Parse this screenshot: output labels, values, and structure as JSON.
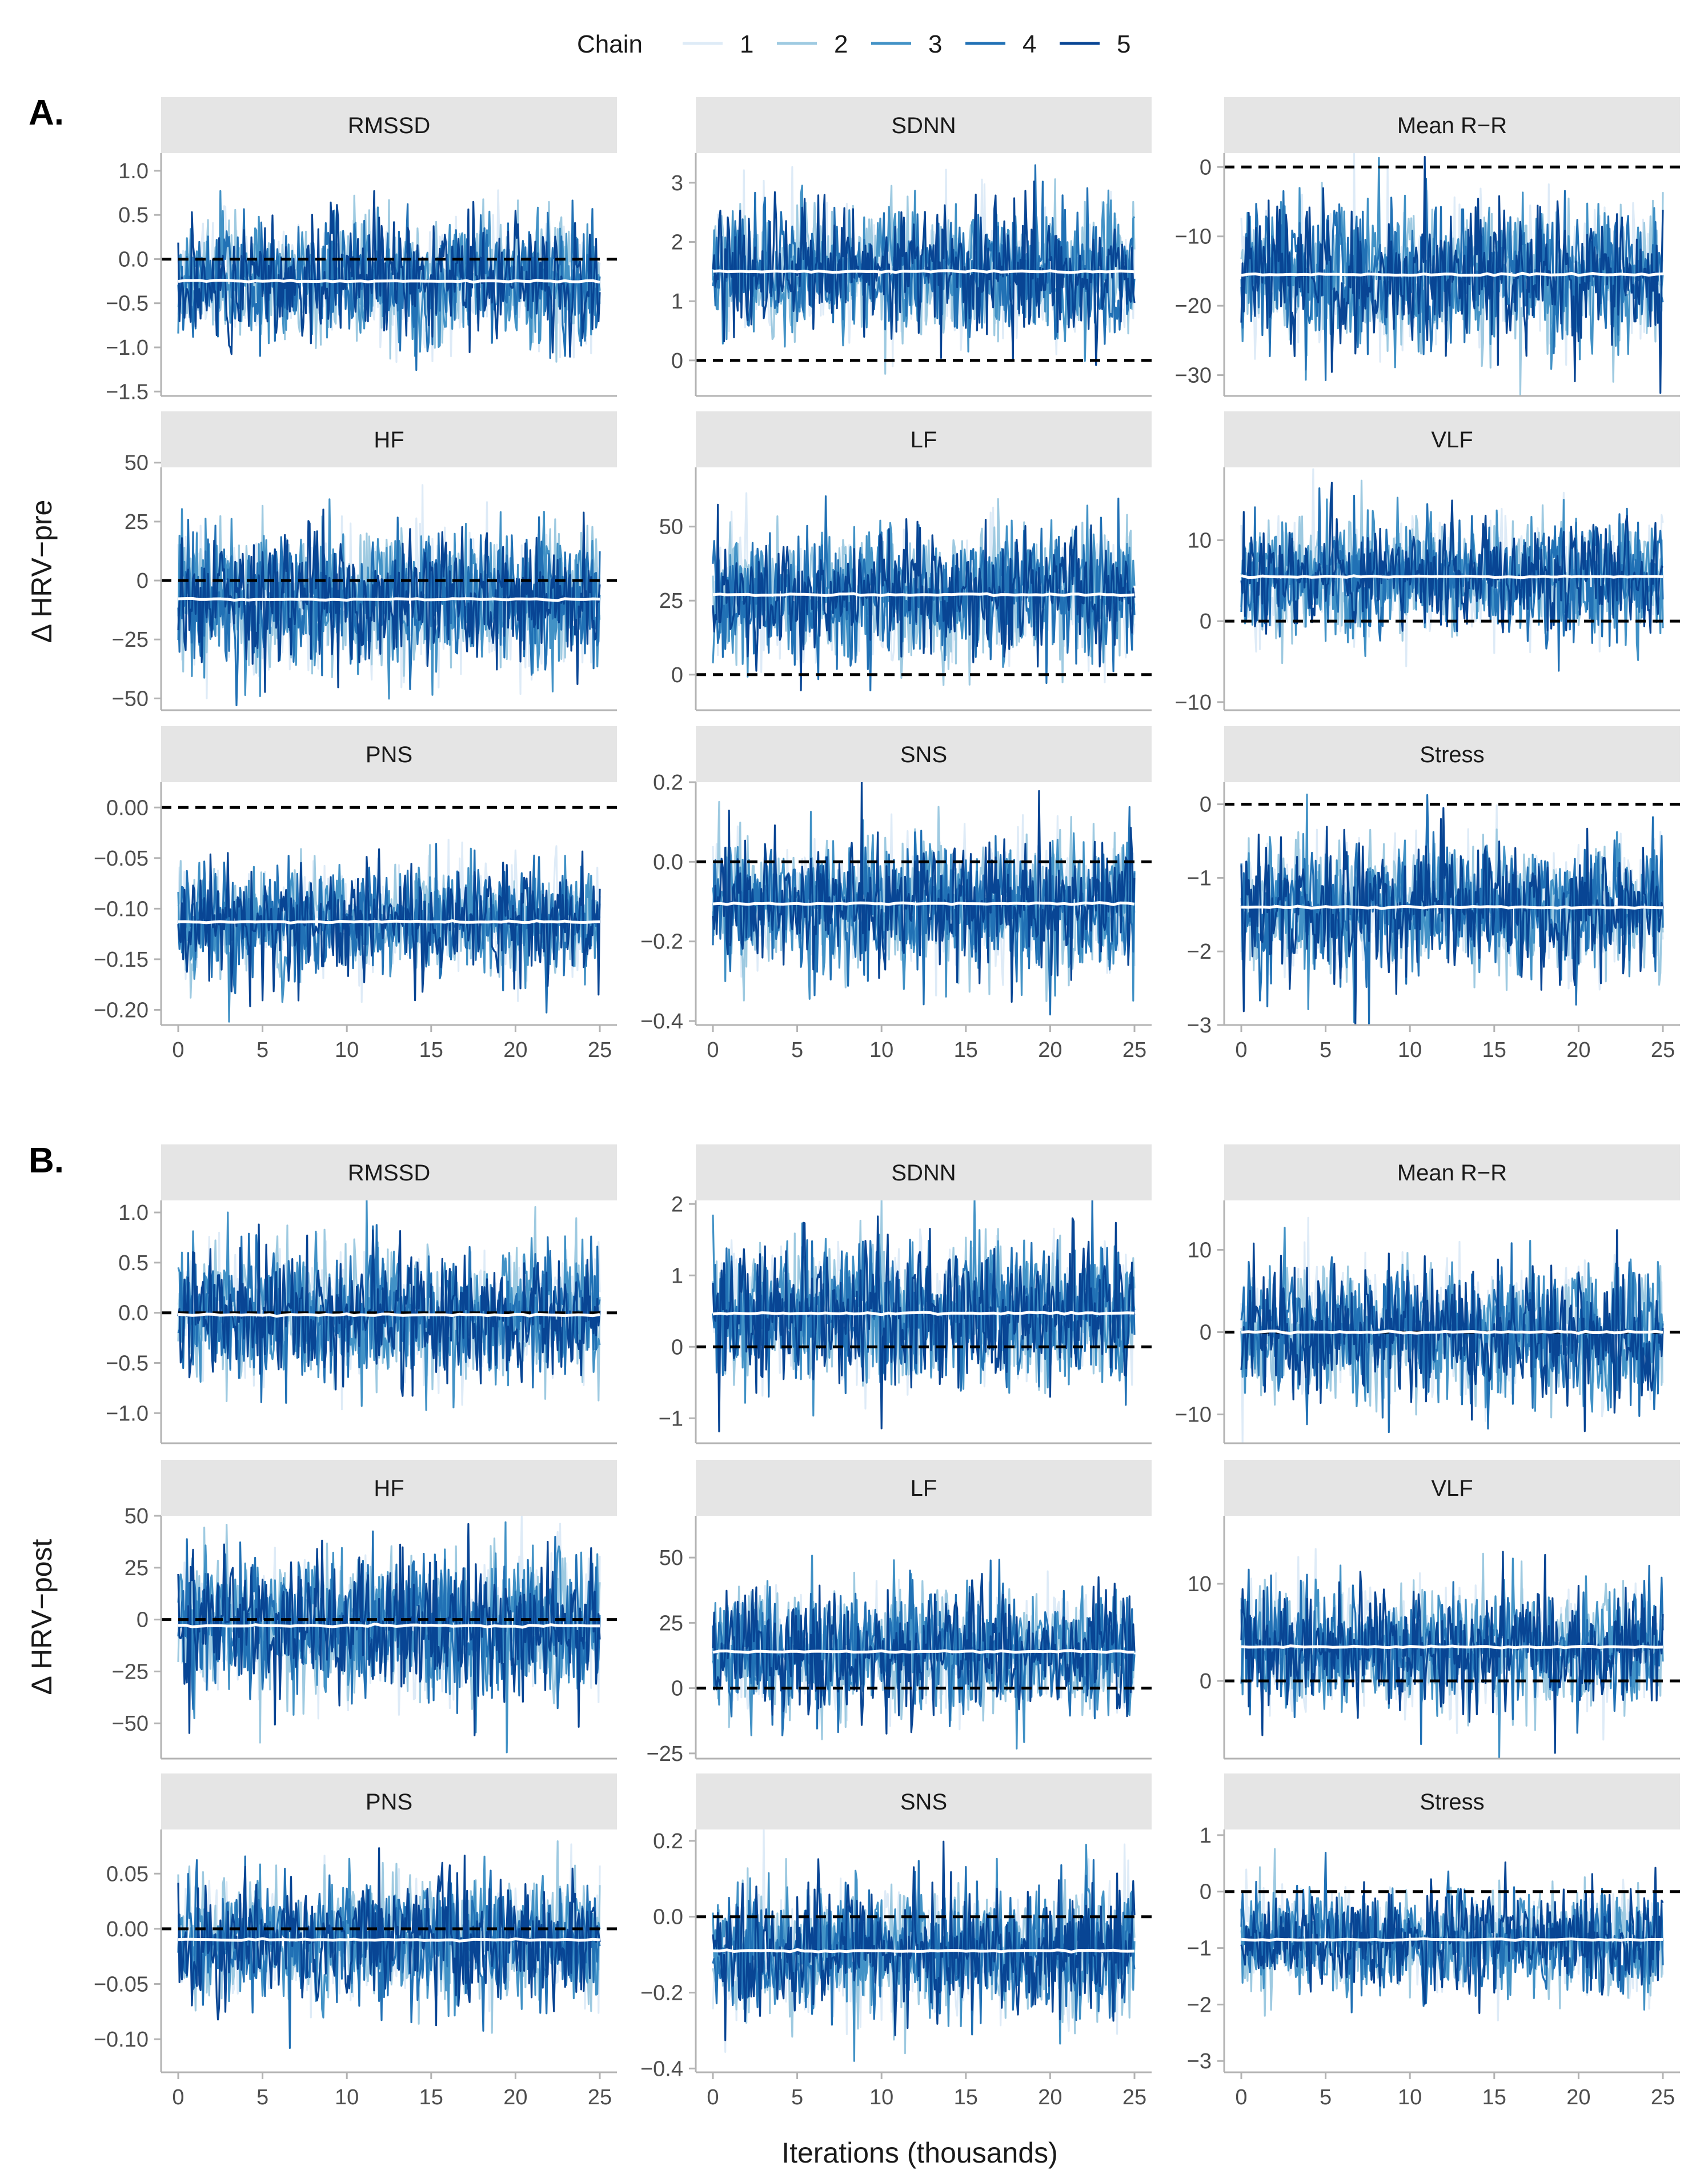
{
  "figure": {
    "legend_title": "Chain",
    "x_axis_title": "Iterations (thousands)",
    "panel_a_label": "A.",
    "panel_b_label": "B.",
    "y_title_a": "Δ HRV−pre",
    "y_title_b": "Δ HRV−post"
  },
  "colors": {
    "chains": [
      "#deebf7",
      "#9ecae1",
      "#4292c6",
      "#2171b5",
      "#084594"
    ],
    "mean_line": "#ffffff",
    "reference_line": "#000000",
    "strip_bg": "#e5e5e5",
    "axis": "#b3b3b3"
  },
  "chart_data": {
    "type": "line",
    "description_type": "MCMC trace plots",
    "chains": [
      "1",
      "2",
      "3",
      "4",
      "5"
    ],
    "x": {
      "label": "Iterations (thousands)",
      "range": [
        0,
        25
      ],
      "ticks": [
        0,
        5,
        10,
        15,
        20,
        25
      ],
      "tick_labels": [
        "0",
        "5",
        "10",
        "15",
        "20",
        "25"
      ]
    },
    "panels": [
      {
        "name": "A.",
        "ylabel": "Δ HRV−pre",
        "facets": [
          {
            "title": "RMSSD",
            "ylim": [
              -1.55,
              1.2
            ],
            "ticks": [
              -1.5,
              -1.0,
              -0.5,
              0.0,
              0.5,
              1.0
            ],
            "tick_labels": [
              "−1.5",
              "−1.0",
              "−0.5",
              "0.0",
              "0.5",
              "1.0"
            ],
            "mean": -0.25,
            "sd": 0.35,
            "reference": 0
          },
          {
            "title": "SDNN",
            "ylim": [
              -0.6,
              3.5
            ],
            "ticks": [
              0,
              1,
              2,
              3
            ],
            "tick_labels": [
              "0",
              "1",
              "2",
              "3"
            ],
            "mean": 1.5,
            "sd": 0.55,
            "reference": 0
          },
          {
            "title": "Mean R−R",
            "ylim": [
              -33,
              2
            ],
            "ticks": [
              -30,
              -20,
              -10,
              0
            ],
            "tick_labels": [
              "−30",
              "−20",
              "−10",
              "0"
            ],
            "mean": -15.5,
            "sd": 5.0,
            "reference": 0
          },
          {
            "title": "HF",
            "ylim": [
              -55,
              48
            ],
            "ticks": [
              -50,
              -25,
              0,
              25,
              50
            ],
            "tick_labels": [
              "−50",
              "−25",
              "0",
              "25",
              "50"
            ],
            "mean": -8,
            "sd": 15,
            "reference": 0
          },
          {
            "title": "LF",
            "ylim": [
              -12,
              70
            ],
            "ticks": [
              0,
              25,
              50
            ],
            "tick_labels": [
              "0",
              "25",
              "50"
            ],
            "mean": 27,
            "sd": 11,
            "reference": 0
          },
          {
            "title": "VLF",
            "ylim": [
              -11,
              19
            ],
            "ticks": [
              -10,
              0,
              10
            ],
            "tick_labels": [
              "−10",
              "0",
              "10"
            ],
            "mean": 5.5,
            "sd": 3.5,
            "reference": 0
          },
          {
            "title": "PNS",
            "ylim": [
              -0.215,
              0.025
            ],
            "ticks": [
              -0.2,
              -0.15,
              -0.1,
              -0.05,
              0.0
            ],
            "tick_labels": [
              "−0.20",
              "−0.15",
              "−0.10",
              "−0.05",
              "0.00"
            ],
            "mean": -0.113,
            "sd": 0.027,
            "reference": 0
          },
          {
            "title": "SNS",
            "ylim": [
              -0.41,
              0.2
            ],
            "ticks": [
              -0.4,
              -0.2,
              0.0,
              0.2
            ],
            "tick_labels": [
              "−0.4",
              "−0.2",
              "0.0",
              "0.2"
            ],
            "mean": -0.105,
            "sd": 0.085,
            "reference": 0
          },
          {
            "title": "Stress",
            "ylim": [
              -3.0,
              0.3
            ],
            "ticks": [
              -3,
              -2,
              -1,
              0
            ],
            "tick_labels": [
              "−3",
              "−2",
              "−1",
              "0"
            ],
            "mean": -1.4,
            "sd": 0.45,
            "reference": 0
          }
        ]
      },
      {
        "name": "B.",
        "ylabel": "Δ HRV−post",
        "facets": [
          {
            "title": "RMSSD",
            "ylim": [
              -1.3,
              1.12
            ],
            "ticks": [
              -1.0,
              -0.5,
              0.0,
              0.5,
              1.0
            ],
            "tick_labels": [
              "−1.0",
              "−0.5",
              "0.0",
              "0.5",
              "1.0"
            ],
            "mean": -0.02,
            "sd": 0.33,
            "reference": 0
          },
          {
            "title": "SDNN",
            "ylim": [
              -1.35,
              2.05
            ],
            "ticks": [
              -1,
              0,
              1,
              2
            ],
            "tick_labels": [
              "−1",
              "0",
              "1",
              "2"
            ],
            "mean": 0.47,
            "sd": 0.5,
            "reference": 0
          },
          {
            "title": "Mean R−R",
            "ylim": [
              -13.5,
              16
            ],
            "ticks": [
              -10,
              0,
              10
            ],
            "tick_labels": [
              "−10",
              "0",
              "10"
            ],
            "mean": 0,
            "sd": 4.0,
            "reference": 0
          },
          {
            "title": "HF",
            "ylim": [
              -67,
              50
            ],
            "ticks": [
              -50,
              -25,
              0,
              25,
              50
            ],
            "tick_labels": [
              "−50",
              "−25",
              "0",
              "25",
              "50"
            ],
            "mean": -3,
            "sd": 17,
            "reference": 0
          },
          {
            "title": "LF",
            "ylim": [
              -27,
              66
            ],
            "ticks": [
              -25,
              0,
              25,
              50
            ],
            "tick_labels": [
              "−25",
              "0",
              "25",
              "50"
            ],
            "mean": 14,
            "sd": 12,
            "reference": 0
          },
          {
            "title": "VLF",
            "ylim": [
              -8,
              17
            ],
            "ticks": [
              0,
              10
            ],
            "tick_labels": [
              "0",
              "10"
            ],
            "mean": 3.5,
            "sd": 3.2,
            "reference": 0
          },
          {
            "title": "PNS",
            "ylim": [
              -0.13,
              0.09
            ],
            "ticks": [
              -0.1,
              -0.05,
              0.0,
              0.05
            ],
            "tick_labels": [
              "−0.10",
              "−0.05",
              "0.00",
              "0.05"
            ],
            "mean": -0.01,
            "sd": 0.028,
            "reference": 0
          },
          {
            "title": "SNS",
            "ylim": [
              -0.41,
              0.23
            ],
            "ticks": [
              -0.4,
              -0.2,
              0.0,
              0.2
            ],
            "tick_labels": [
              "−0.4",
              "−0.2",
              "0.0",
              "0.2"
            ],
            "mean": -0.09,
            "sd": 0.085,
            "reference": 0
          },
          {
            "title": "Stress",
            "ylim": [
              -3.2,
              1.1
            ],
            "ticks": [
              -3,
              -2,
              -1,
              0,
              1
            ],
            "tick_labels": [
              "−3",
              "−2",
              "−1",
              "0",
              "1"
            ],
            "mean": -0.85,
            "sd": 0.45,
            "reference": 0
          }
        ]
      }
    ]
  }
}
